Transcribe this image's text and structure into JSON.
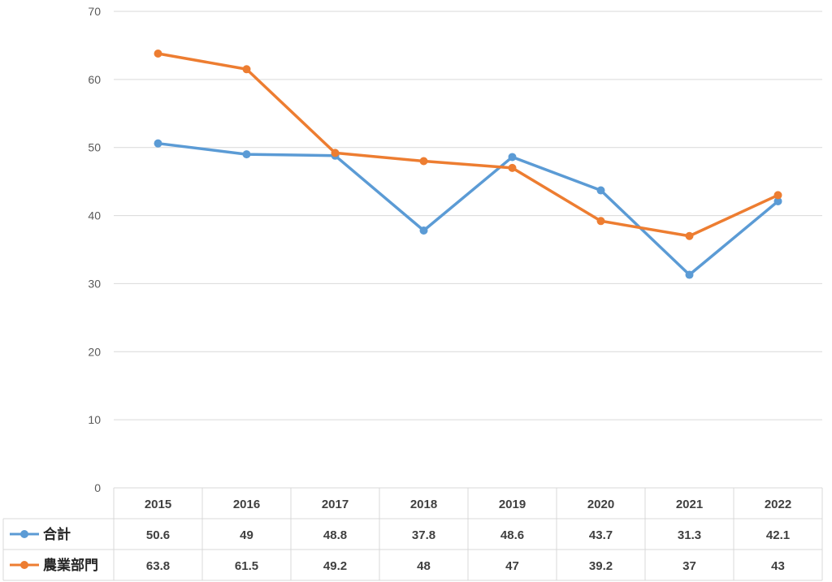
{
  "chart_data": {
    "type": "line",
    "categories": [
      "2015",
      "2016",
      "2017",
      "2018",
      "2019",
      "2020",
      "2021",
      "2022"
    ],
    "ylim": [
      0,
      70
    ],
    "yticks": [
      0,
      10,
      20,
      30,
      40,
      50,
      60,
      70
    ],
    "grid": true,
    "legend": "data-table",
    "series": [
      {
        "name": "合計",
        "color": "#5b9bd5",
        "values": [
          50.6,
          49,
          48.8,
          37.8,
          48.6,
          43.7,
          31.3,
          42.1
        ],
        "labels": [
          "50.6",
          "49",
          "48.8",
          "37.8",
          "48.6",
          "43.7",
          "31.3",
          "42.1"
        ]
      },
      {
        "name": "農業部門",
        "color": "#ed7d31",
        "values": [
          63.8,
          61.5,
          49.2,
          48,
          47,
          39.2,
          37,
          43
        ],
        "labels": [
          "63.8",
          "61.5",
          "49.2",
          "48",
          "47",
          "39.2",
          "37",
          "43"
        ]
      }
    ]
  }
}
